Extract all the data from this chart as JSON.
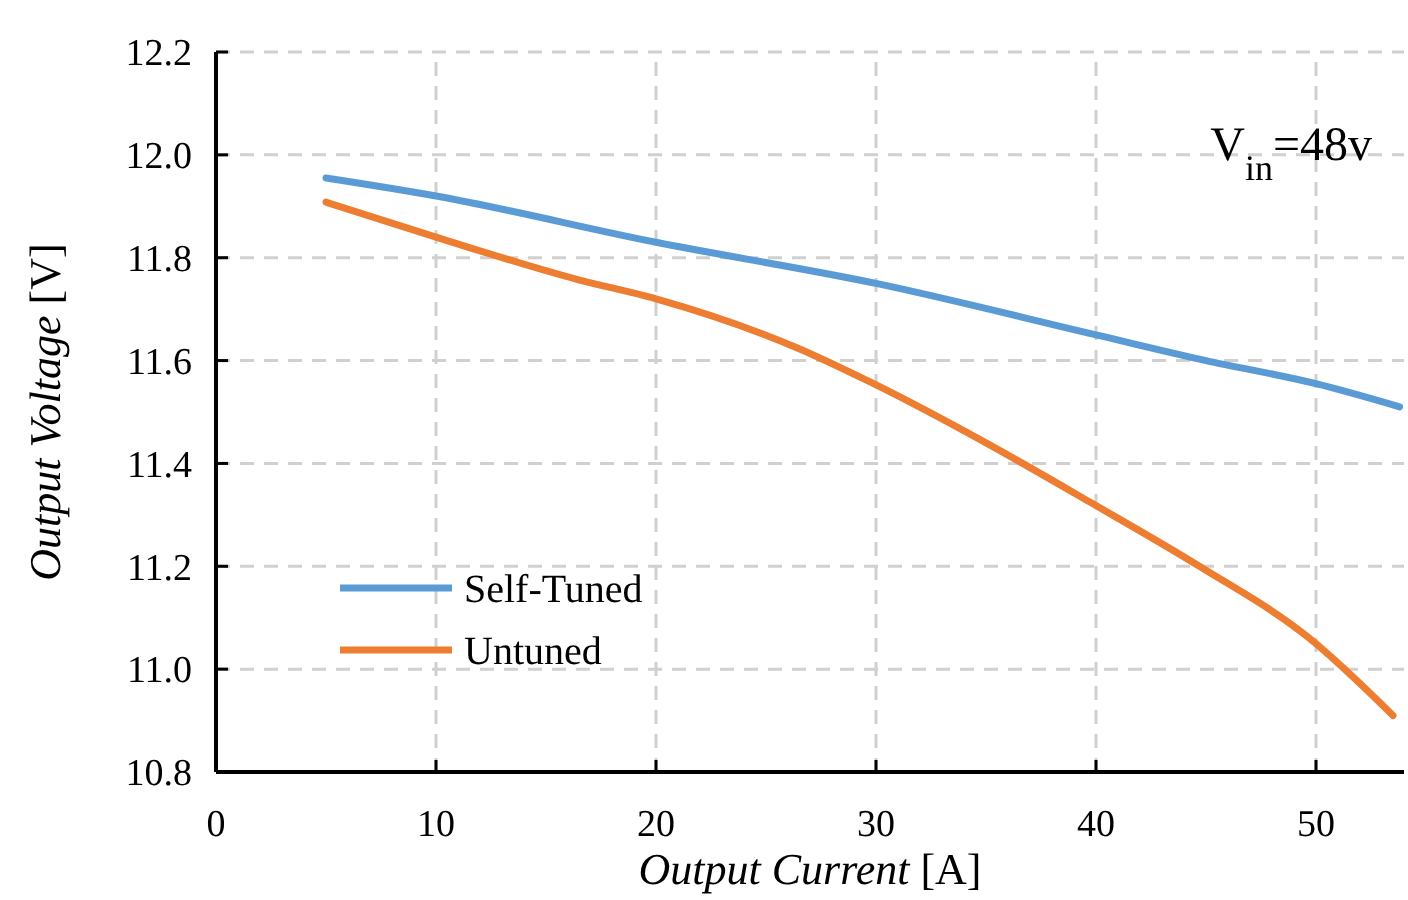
{
  "chart_data": {
    "type": "line",
    "xlabel": "Output Current [A]",
    "ylabel": "Output Voltage [V]",
    "annotations": [
      "V$_{in}$=48v"
    ],
    "xlim": [
      0,
      54
    ],
    "xticks": [
      0,
      10,
      20,
      30,
      40,
      50
    ],
    "ylim": [
      10.8,
      12.2
    ],
    "yticks": [
      10.8,
      {
        "value": 11,
        "label": "11.0"
      },
      11.2,
      11.4,
      11.6,
      11.8,
      {
        "value": 12,
        "label": "12.0"
      },
      12.2
    ],
    "grid": true,
    "legend": "bottom left",
    "line_style": "solid",
    "marker": "none",
    "series": [
      {
        "name": "Self-Tuned",
        "color": "#5b9bd5",
        "x": [
          5,
          10,
          20,
          30,
          40,
          45,
          50,
          53.8
        ],
        "values": [
          11.955,
          11.92,
          11.83,
          11.75,
          11.65,
          11.6,
          11.555,
          11.51
        ]
      },
      {
        "name": "Untuned",
        "color": "#ed7d31",
        "x": [
          5,
          10,
          16.4,
          20,
          26.4,
          29.8,
          35,
          39.8,
          44.7,
          49.7,
          53.5
        ],
        "values": [
          11.908,
          11.84,
          11.758,
          11.72,
          11.625,
          11.557,
          11.44,
          11.323,
          11.2,
          11.06,
          10.91
        ]
      }
    ]
  }
}
